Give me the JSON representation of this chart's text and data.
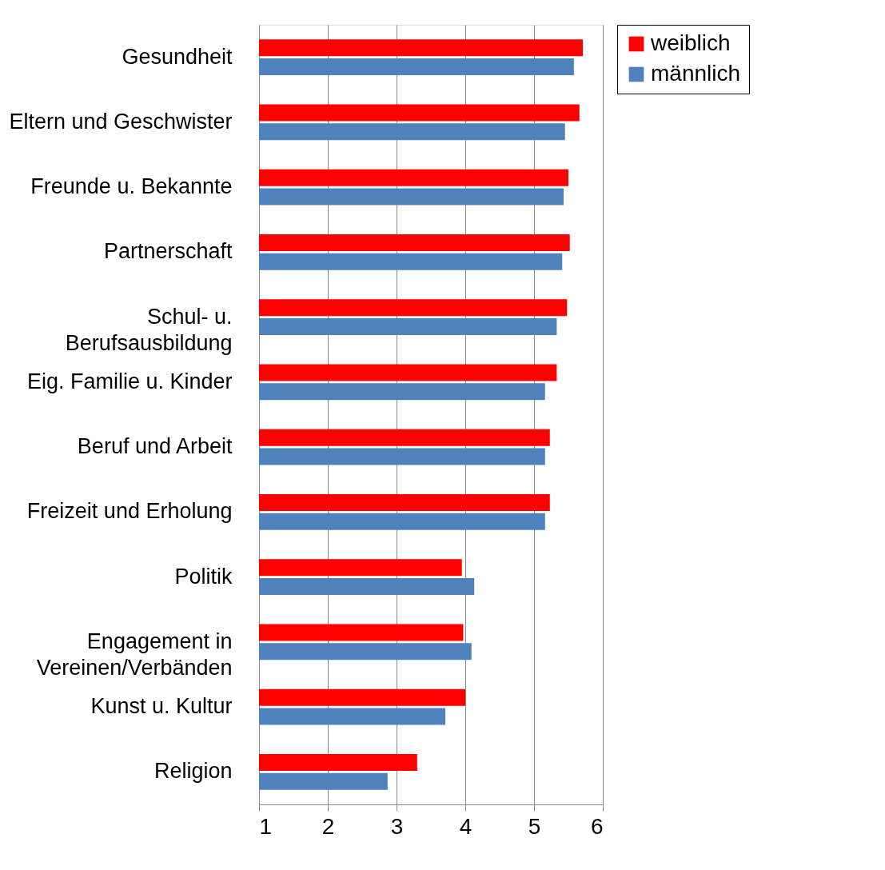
{
  "chart_data": {
    "type": "bar",
    "orientation": "horizontal",
    "categories": [
      "Gesundheit",
      "Eltern und Geschwister",
      "Freunde u. Bekannte",
      "Partnerschaft",
      "Schul- u.\nBerufsausbildung",
      "Eig. Familie u. Kinder",
      "Beruf und Arbeit",
      "Freizeit und Erholung",
      "Politik",
      "Engagement in\nVereinen/Verbänden",
      "Kunst u. Kultur",
      "Religion"
    ],
    "series": [
      {
        "name": "weiblich",
        "color": "#ff0000",
        "values": [
          5.71,
          5.66,
          5.5,
          5.52,
          5.48,
          5.33,
          5.23,
          5.23,
          3.95,
          3.97,
          4.0,
          3.3
        ]
      },
      {
        "name": "männlich",
        "color": "#4f81bd",
        "values": [
          5.58,
          5.45,
          5.43,
          5.41,
          5.33,
          5.16,
          5.16,
          5.16,
          4.13,
          4.09,
          3.71,
          2.87
        ]
      }
    ],
    "xlim": [
      1,
      6
    ],
    "xticks": [
      1,
      2,
      3,
      4,
      5,
      6
    ],
    "grid": "x",
    "legend": "right"
  }
}
